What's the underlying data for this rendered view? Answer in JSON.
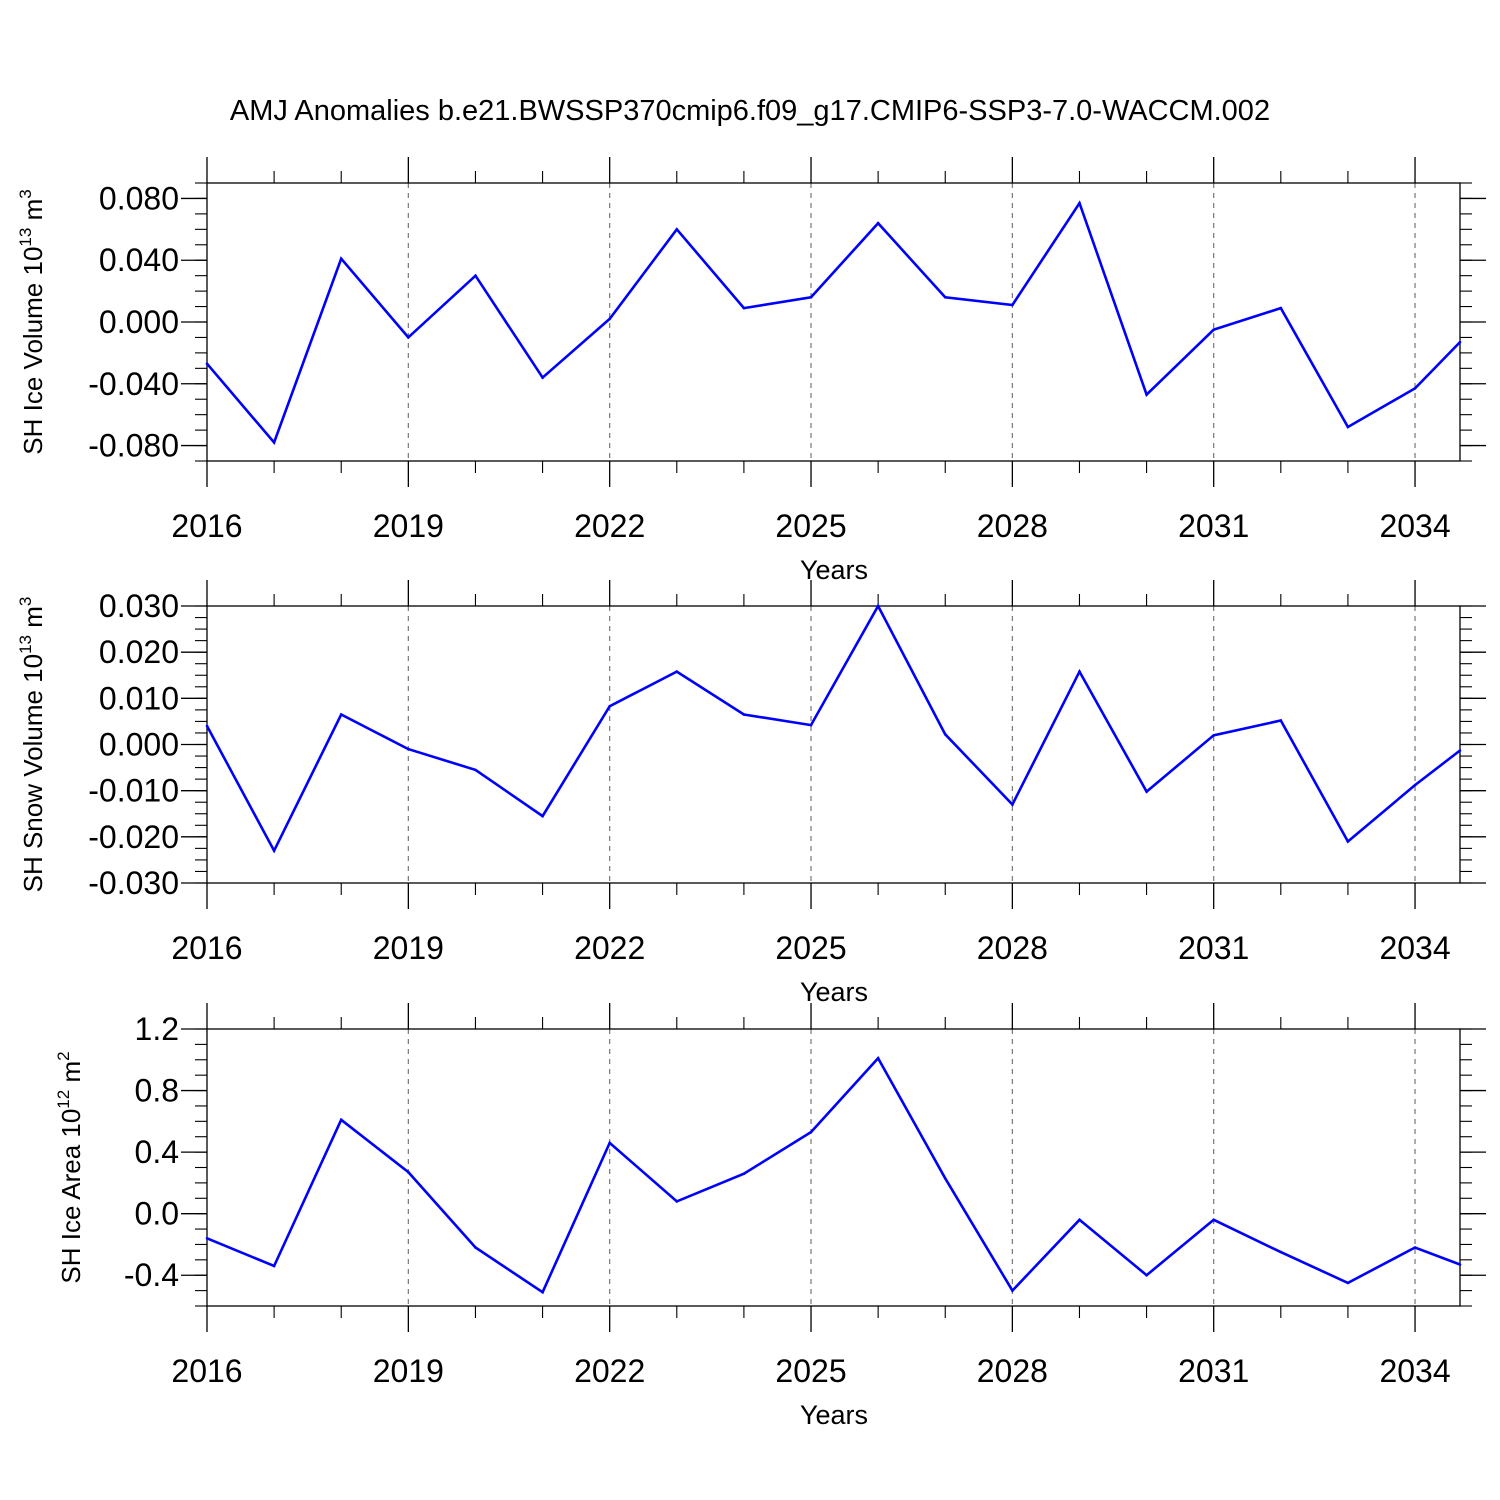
{
  "title": "AMJ Anomalies b.e21.BWSSP370cmip6.f09_g17.CMIP6-SSP3-7.0-WACCM.002",
  "line_color": "#0000ff",
  "chart_data": [
    {
      "type": "line",
      "name": "sh-ice-volume",
      "ylabel_main": "SH Ice Volume 10",
      "ylabel_exp": "13",
      "ylabel_unit": " m",
      "ylabel_unit_exp": "3",
      "xlabel": "Years",
      "xlim": [
        2016,
        2034.67
      ],
      "ylim": [
        -0.09,
        0.09
      ],
      "xticks": [
        2016,
        2019,
        2022,
        2025,
        2028,
        2031,
        2034
      ],
      "xtick_labels": [
        "2016",
        "2019",
        "2022",
        "2025",
        "2028",
        "2031",
        "2034"
      ],
      "yticks": [
        0.08,
        0.04,
        0.0,
        -0.04,
        -0.08
      ],
      "ytick_labels": [
        "0.080",
        "0.040",
        "0.000",
        "-0.040",
        "-0.080"
      ],
      "grid": "vertical dashed at labeled years",
      "x": [
        2016,
        2017,
        2018,
        2019,
        2020,
        2021,
        2022,
        2023,
        2024,
        2025,
        2026,
        2027,
        2028,
        2029,
        2030,
        2031,
        2032,
        2033,
        2034,
        2034.67
      ],
      "y": [
        -0.027,
        -0.078,
        0.041,
        -0.01,
        0.03,
        -0.036,
        0.002,
        0.06,
        0.009,
        0.016,
        0.064,
        0.016,
        0.011,
        0.077,
        -0.047,
        -0.005,
        0.009,
        -0.068,
        -0.043,
        -0.013
      ]
    },
    {
      "type": "line",
      "name": "sh-snow-volume",
      "ylabel_main": "SH Snow Volume 10",
      "ylabel_exp": "13",
      "ylabel_unit": " m",
      "ylabel_unit_exp": "3",
      "xlabel": "Years",
      "xlim": [
        2016,
        2034.67
      ],
      "ylim": [
        -0.03,
        0.03
      ],
      "xticks": [
        2016,
        2019,
        2022,
        2025,
        2028,
        2031,
        2034
      ],
      "xtick_labels": [
        "2016",
        "2019",
        "2022",
        "2025",
        "2028",
        "2031",
        "2034"
      ],
      "yticks": [
        0.03,
        0.02,
        0.01,
        0.0,
        -0.01,
        -0.02,
        -0.03
      ],
      "ytick_labels": [
        "0.030",
        "0.020",
        "0.010",
        "0.000",
        "-0.010",
        "-0.020",
        "-0.030"
      ],
      "grid": "vertical dashed at labeled years",
      "x": [
        2016,
        2017,
        2018,
        2019,
        2020,
        2021,
        2022,
        2023,
        2024,
        2025,
        2026,
        2027,
        2028,
        2029,
        2030,
        2031,
        2032,
        2033,
        2034,
        2034.67
      ],
      "y": [
        0.004,
        -0.023,
        0.0065,
        -0.001,
        -0.0055,
        -0.0155,
        0.0083,
        0.0158,
        0.0065,
        0.0042,
        0.03,
        0.0022,
        -0.013,
        0.0158,
        -0.0102,
        0.002,
        0.0052,
        -0.021,
        -0.0088,
        -0.0013
      ]
    },
    {
      "type": "line",
      "name": "sh-ice-area",
      "ylabel_main": "SH Ice Area 10",
      "ylabel_exp": "12",
      "ylabel_unit": " m",
      "ylabel_unit_exp": "2",
      "xlabel": "Years",
      "xlim": [
        2016,
        2034.67
      ],
      "ylim": [
        -0.6,
        1.2
      ],
      "xticks": [
        2016,
        2019,
        2022,
        2025,
        2028,
        2031,
        2034
      ],
      "xtick_labels": [
        "2016",
        "2019",
        "2022",
        "2025",
        "2028",
        "2031",
        "2034"
      ],
      "yticks": [
        1.2,
        0.8,
        0.4,
        0.0,
        -0.4
      ],
      "ytick_labels": [
        "1.2",
        "0.8",
        "0.4",
        "0.0",
        "-0.4"
      ],
      "grid": "vertical dashed at labeled years",
      "x": [
        2016,
        2017,
        2018,
        2019,
        2020,
        2021,
        2022,
        2023,
        2024,
        2025,
        2026,
        2027,
        2028,
        2029,
        2030,
        2031,
        2032,
        2033,
        2034,
        2034.67
      ],
      "y": [
        -0.16,
        -0.34,
        0.61,
        0.27,
        -0.22,
        -0.51,
        0.46,
        0.08,
        0.26,
        0.53,
        1.01,
        0.23,
        -0.5,
        -0.04,
        -0.4,
        -0.04,
        -0.25,
        -0.45,
        -0.22,
        -0.33
      ]
    }
  ]
}
